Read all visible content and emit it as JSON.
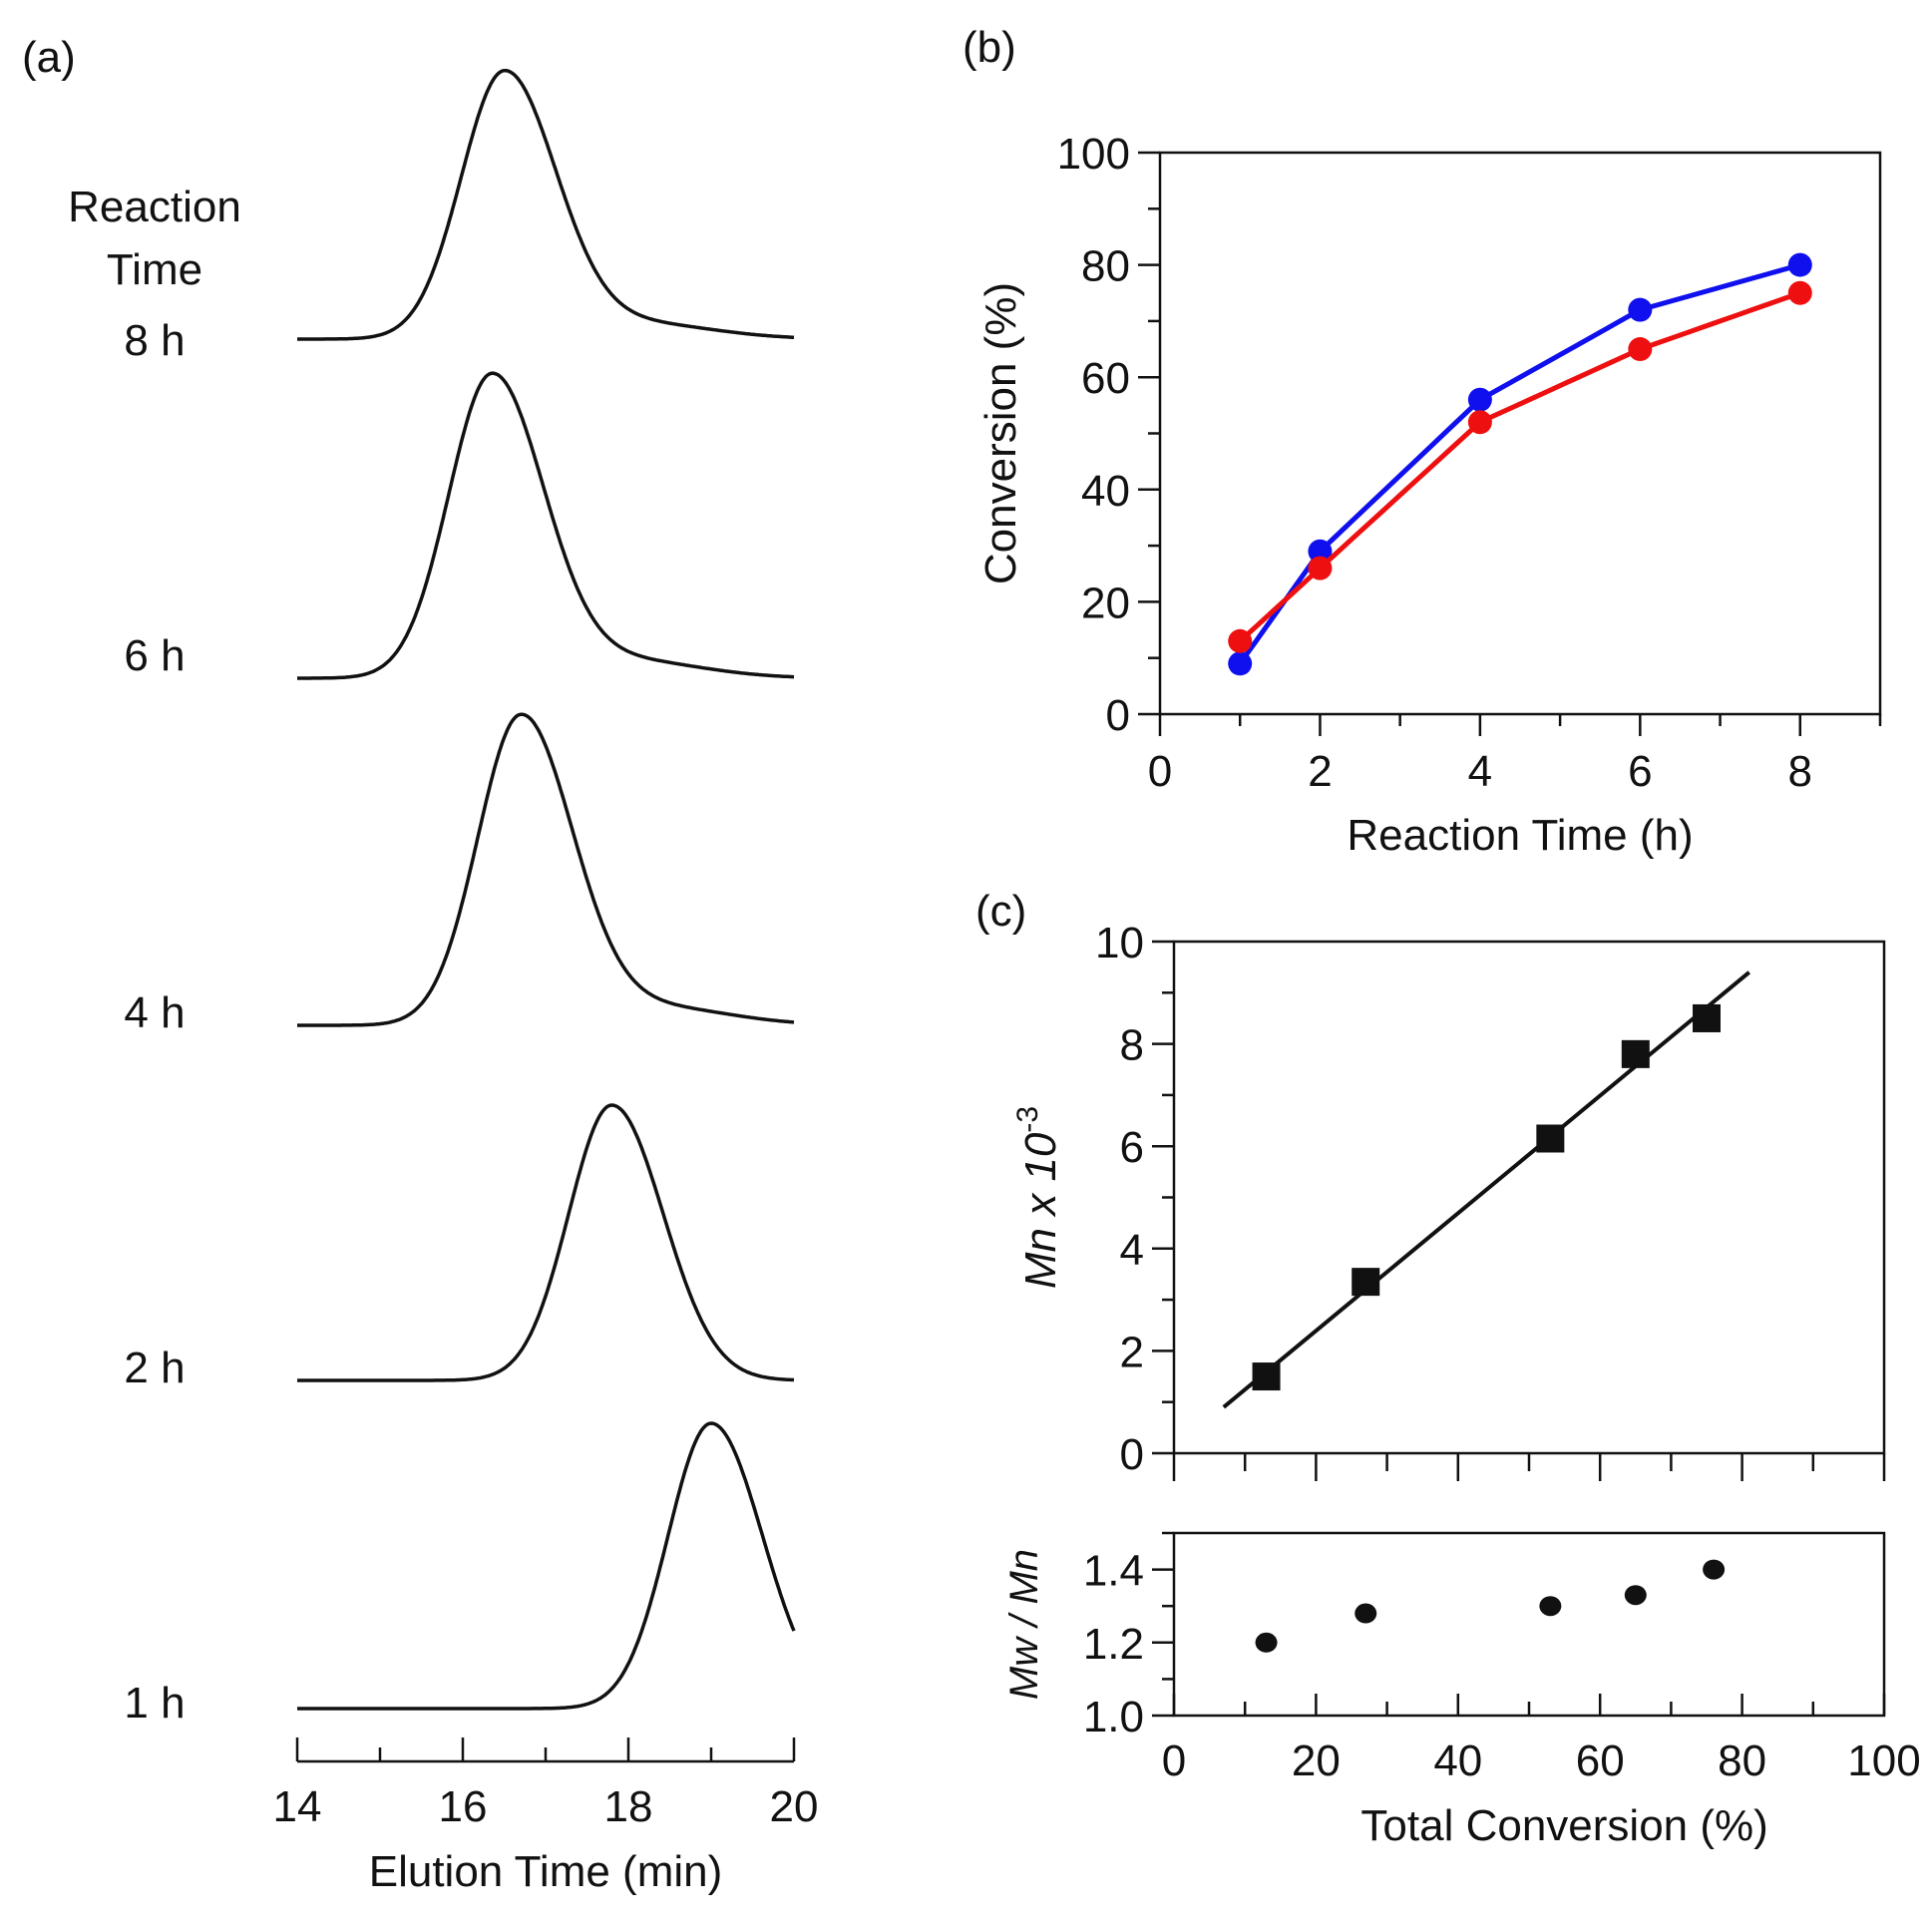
{
  "chart_data": [
    {
      "panel": "(a)",
      "type": "line",
      "title": "",
      "legend_title": [
        "Reaction",
        "Time"
      ],
      "xlabel": "Elution Time (min)",
      "xlim": [
        14,
        20
      ],
      "xticks": [
        "14",
        "16",
        "18",
        "20"
      ],
      "series": [
        {
          "name": "8 h",
          "peak_elution_min": 16.5
        },
        {
          "name": "6 h",
          "peak_elution_min": 16.35
        },
        {
          "name": "4 h",
          "peak_elution_min": 16.7
        },
        {
          "name": "2 h",
          "peak_elution_min": 17.8
        },
        {
          "name": "1 h",
          "peak_elution_min": 19.0
        }
      ]
    },
    {
      "panel": "(b)",
      "type": "line",
      "xlabel": "Reaction Time (h)",
      "ylabel": "Conversion (%)",
      "xlim": [
        0,
        9
      ],
      "ylim": [
        0,
        100
      ],
      "xticks": [
        "0",
        "2",
        "4",
        "6",
        "8"
      ],
      "yticks": [
        "0",
        "20",
        "40",
        "60",
        "80",
        "100"
      ],
      "series": [
        {
          "name": "blue",
          "color": "#1010ee",
          "x": [
            1,
            2,
            4,
            6,
            8
          ],
          "y": [
            9,
            29,
            56,
            72,
            80
          ]
        },
        {
          "name": "red",
          "color": "#ee1010",
          "x": [
            1,
            2,
            4,
            6,
            8
          ],
          "y": [
            13,
            26,
            52,
            65,
            75
          ]
        }
      ]
    },
    {
      "panel": "(c)",
      "type": "scatter",
      "ylabel": "Mn x 10",
      "ylabel_sup": "-3",
      "xlim": [
        0,
        100
      ],
      "ylim": [
        0,
        10
      ],
      "yticks": [
        "0",
        "2",
        "4",
        "6",
        "8",
        "10"
      ],
      "x": [
        13,
        27,
        53,
        65,
        75
      ],
      "y": [
        1.5,
        3.35,
        6.15,
        7.8,
        8.5
      ],
      "fit": {
        "x": [
          7,
          81
        ],
        "y": [
          0.9,
          9.4
        ]
      }
    },
    {
      "panel": "(c-lower)",
      "type": "scatter",
      "xlabel": "Total Conversion (%)",
      "ylabel": "Mw / Mn",
      "xlim": [
        0,
        100
      ],
      "ylim": [
        1.0,
        1.5
      ],
      "xticks": [
        "0",
        "20",
        "40",
        "60",
        "80",
        "100"
      ],
      "yticks": [
        "1.0",
        "1.2",
        "1.4"
      ],
      "x": [
        13,
        27,
        53,
        65,
        76
      ],
      "y": [
        1.2,
        1.28,
        1.3,
        1.33,
        1.4
      ]
    }
  ]
}
